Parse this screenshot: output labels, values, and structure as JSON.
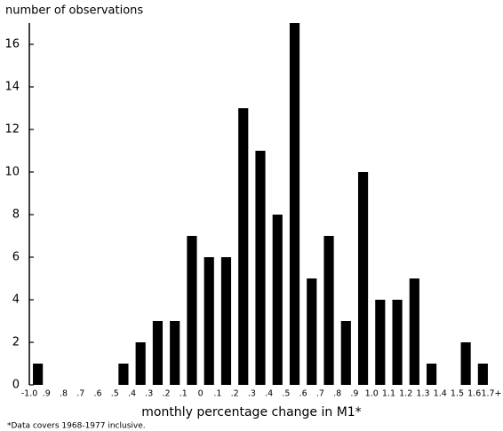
{
  "chart_data": {
    "type": "histogram",
    "title": "number of observations",
    "x_label": "monthly percentage change in M1*",
    "note": "*Data covers 1968-1977 inclusive.",
    "bins": [
      {
        "value": -1.0,
        "label": "-1.0"
      },
      {
        "value": -0.9,
        "label": ".9"
      },
      {
        "value": -0.8,
        "label": ".8"
      },
      {
        "value": -0.7,
        "label": ".7"
      },
      {
        "value": -0.6,
        "label": ".6"
      },
      {
        "value": -0.5,
        "label": ".5"
      },
      {
        "value": -0.4,
        "label": ".4"
      },
      {
        "value": -0.3,
        "label": ".3"
      },
      {
        "value": -0.2,
        "label": ".2"
      },
      {
        "value": -0.1,
        "label": ".1"
      },
      0,
      {
        "value": 0.1,
        "label": ".1"
      },
      {
        "value": 0.2,
        "label": ".2"
      },
      {
        "value": 0.3,
        "label": ".3"
      },
      {
        "value": 0.4,
        "label": ".4"
      },
      {
        "value": 0.5,
        "label": ".5"
      },
      {
        "value": 0.6,
        "label": ".6"
      },
      {
        "value": 0.7,
        "label": ".7"
      },
      {
        "value": 0.8,
        "label": ".8"
      },
      {
        "value": 0.9,
        "label": ".9"
      },
      {
        "value": 1.0,
        "label": "1.0"
      },
      1.1,
      1.2,
      1.3,
      1.4,
      1.5,
      1.6,
      {
        "value": 1.7,
        "label": "1.7+"
      }
    ],
    "values": [
      1,
      0,
      0,
      0,
      0,
      1,
      2,
      3,
      3,
      7,
      6,
      6,
      13,
      11,
      8,
      17,
      5,
      7,
      3,
      10,
      4,
      4,
      5,
      1,
      0,
      2,
      1
    ],
    "color": "#000000",
    "xlim": [
      -1.0,
      1.7
    ],
    "ylim": [
      0,
      17
    ],
    "yticks": [
      0,
      2,
      4,
      6,
      8,
      10,
      12,
      14,
      16
    ],
    "grid": false
  }
}
